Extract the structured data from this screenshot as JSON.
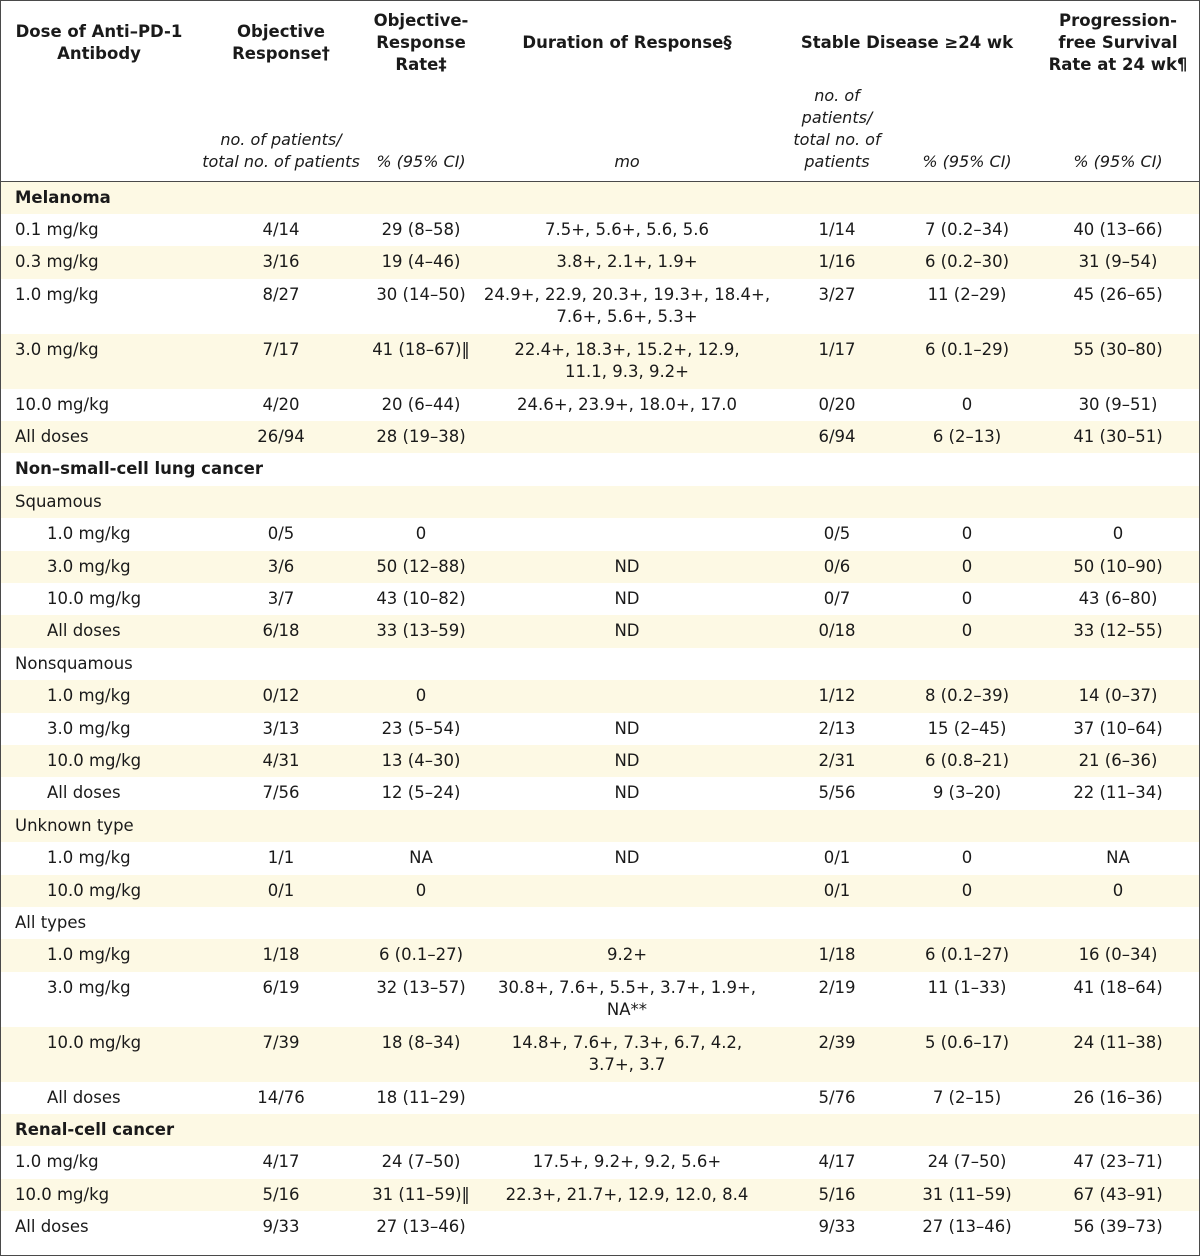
{
  "header": {
    "dose": "Dose of Anti–PD-1 Antibody",
    "objective_response": "Objective Response†",
    "objective_response_rate": "Objective-Response Rate‡",
    "duration_of_response": "Duration of Response§",
    "stable_disease": "Stable Disease ≥24 wk",
    "pfs_rate": "Progression-free Survival Rate at 24 wk¶"
  },
  "units": {
    "objective_response": "no. of patients/ total no. of patients",
    "orr": "% (95% CI)",
    "duration": "mo",
    "stable_n": "no. of patients/ total no. of patients",
    "stable_pct": "% (95% CI)",
    "pfs": "% (95% CI)"
  },
  "rows": [
    {
      "kind": "section",
      "label": "Melanoma"
    },
    {
      "kind": "data",
      "label": "0.1 mg/kg",
      "or": "4/14",
      "orr": "29 (8–58)",
      "dur": "7.5+, 5.6+, 5.6, 5.6",
      "sd": "1/14",
      "sdp": "7 (0.2–34)",
      "pfs": "40 (13–66)"
    },
    {
      "kind": "data",
      "label": "0.3 mg/kg",
      "or": "3/16",
      "orr": "19 (4–46)",
      "dur": "3.8+, 2.1+, 1.9+",
      "sd": "1/16",
      "sdp": "6 (0.2–30)",
      "pfs": "31 (9–54)"
    },
    {
      "kind": "data",
      "tall": true,
      "label": "1.0 mg/kg",
      "or": "8/27",
      "orr": "30 (14–50)",
      "dur": "24.9+, 22.9, 20.3+, 19.3+, 18.4+,\n7.6+, 5.6+, 5.3+",
      "sd": "3/27",
      "sdp": "11 (2–29)",
      "pfs": "45 (26–65)"
    },
    {
      "kind": "data",
      "tall": true,
      "label": "3.0 mg/kg",
      "or": "7/17",
      "orr": "41 (18–67)‖",
      "dur": "22.4+, 18.3+, 15.2+, 12.9,\n11.1, 9.3, 9.2+",
      "sd": "1/17",
      "sdp": "6 (0.1–29)",
      "pfs": "55 (30–80)"
    },
    {
      "kind": "data",
      "label": "10.0 mg/kg",
      "or": "4/20",
      "orr": "20 (6–44)",
      "dur": "24.6+, 23.9+, 18.0+, 17.0",
      "sd": "0/20",
      "sdp": "0",
      "pfs": "30 (9–51)"
    },
    {
      "kind": "data",
      "label": "All doses",
      "or": "26/94",
      "orr": "28 (19–38)",
      "dur": "",
      "sd": "6/94",
      "sdp": "6 (2–13)",
      "pfs": "41 (30–51)"
    },
    {
      "kind": "section",
      "label": "Non–small-cell lung cancer"
    },
    {
      "kind": "subsec",
      "label": "Squamous"
    },
    {
      "kind": "data",
      "ind": true,
      "label": "1.0 mg/kg",
      "or": "0/5",
      "orr": "0",
      "dur": "",
      "sd": "0/5",
      "sdp": "0",
      "pfs": "0"
    },
    {
      "kind": "data",
      "ind": true,
      "label": "3.0 mg/kg",
      "or": "3/6",
      "orr": "50 (12–88)",
      "dur": "ND",
      "sd": "0/6",
      "sdp": "0",
      "pfs": "50 (10–90)"
    },
    {
      "kind": "data",
      "ind": true,
      "label": "10.0 mg/kg",
      "or": "3/7",
      "orr": "43 (10–82)",
      "dur": "ND",
      "sd": "0/7",
      "sdp": "0",
      "pfs": "43 (6–80)"
    },
    {
      "kind": "data",
      "ind": true,
      "label": "All doses",
      "or": "6/18",
      "orr": "33 (13–59)",
      "dur": "ND",
      "sd": "0/18",
      "sdp": "0",
      "pfs": "33 (12–55)"
    },
    {
      "kind": "subsec",
      "label": "Nonsquamous"
    },
    {
      "kind": "data",
      "ind": true,
      "label": "1.0 mg/kg",
      "or": "0/12",
      "orr": "0",
      "dur": "",
      "sd": "1/12",
      "sdp": "8 (0.2–39)",
      "pfs": "14 (0–37)"
    },
    {
      "kind": "data",
      "ind": true,
      "label": "3.0 mg/kg",
      "or": "3/13",
      "orr": "23 (5–54)",
      "dur": "ND",
      "sd": "2/13",
      "sdp": "15 (2–45)",
      "pfs": "37 (10–64)"
    },
    {
      "kind": "data",
      "ind": true,
      "label": "10.0 mg/kg",
      "or": "4/31",
      "orr": "13 (4–30)",
      "dur": "ND",
      "sd": "2/31",
      "sdp": "6 (0.8–21)",
      "pfs": "21 (6–36)"
    },
    {
      "kind": "data",
      "ind": true,
      "label": "All doses",
      "or": "7/56",
      "orr": "12 (5–24)",
      "dur": "ND",
      "sd": "5/56",
      "sdp": "9 (3–20)",
      "pfs": "22 (11–34)"
    },
    {
      "kind": "subsec",
      "label": "Unknown type"
    },
    {
      "kind": "data",
      "ind": true,
      "label": "1.0 mg/kg",
      "or": "1/1",
      "orr": "NA",
      "dur": "ND",
      "sd": "0/1",
      "sdp": "0",
      "pfs": "NA"
    },
    {
      "kind": "data",
      "ind": true,
      "label": "10.0 mg/kg",
      "or": "0/1",
      "orr": "0",
      "dur": "",
      "sd": "0/1",
      "sdp": "0",
      "pfs": "0"
    },
    {
      "kind": "subsec",
      "label": "All types"
    },
    {
      "kind": "data",
      "ind": true,
      "label": "1.0 mg/kg",
      "or": "1/18",
      "orr": "6 (0.1–27)",
      "dur": "9.2+",
      "sd": "1/18",
      "sdp": "6 (0.1–27)",
      "pfs": "16 (0–34)"
    },
    {
      "kind": "data",
      "ind": true,
      "tall": true,
      "label": "3.0 mg/kg",
      "or": "6/19",
      "orr": "32 (13–57)",
      "dur": "30.8+, 7.6+, 5.5+, 3.7+, 1.9+,\nNA**",
      "sd": "2/19",
      "sdp": "11 (1–33)",
      "pfs": "41 (18–64)"
    },
    {
      "kind": "data",
      "ind": true,
      "tall": true,
      "label": "10.0 mg/kg",
      "or": "7/39",
      "orr": "18 (8–34)",
      "dur": "14.8+, 7.6+, 7.3+, 6.7, 4.2,\n3.7+, 3.7",
      "sd": "2/39",
      "sdp": "5 (0.6–17)",
      "pfs": "24 (11–38)"
    },
    {
      "kind": "data",
      "ind": true,
      "label": "All doses",
      "or": "14/76",
      "orr": "18 (11–29)",
      "dur": "",
      "sd": "5/76",
      "sdp": "7 (2–15)",
      "pfs": "26 (16–36)"
    },
    {
      "kind": "section",
      "label": "Renal-cell cancer"
    },
    {
      "kind": "data",
      "label": "1.0 mg/kg",
      "or": "4/17",
      "orr": "24 (7–50)",
      "dur": "17.5+, 9.2+, 9.2, 5.6+",
      "sd": "4/17",
      "sdp": "24 (7–50)",
      "pfs": "47 (23–71)"
    },
    {
      "kind": "data",
      "label": "10.0 mg/kg",
      "or": "5/16",
      "orr": "31 (11–59)‖",
      "dur": "22.3+, 21.7+, 12.9, 12.0, 8.4",
      "sd": "5/16",
      "sdp": "31 (11–59)",
      "pfs": "67 (43–91)"
    },
    {
      "kind": "data",
      "label": "All doses",
      "or": "9/33",
      "orr": "27 (13–46)",
      "dur": "",
      "sd": "9/33",
      "sdp": "27 (13–46)",
      "pfs": "56 (39–73)"
    }
  ]
}
